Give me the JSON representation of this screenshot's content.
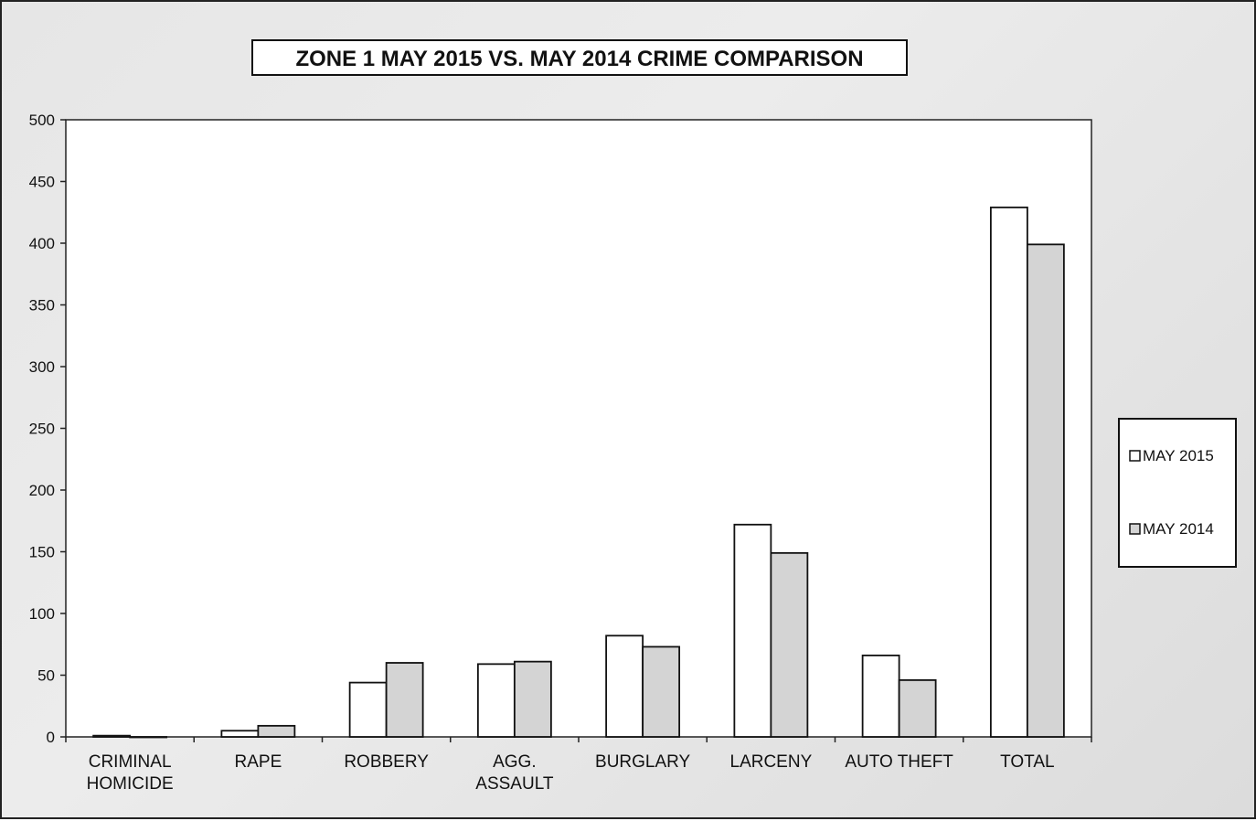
{
  "chart_data": {
    "type": "bar",
    "title": "ZONE 1  MAY 2015 VS. MAY 2014 CRIME COMPARISON",
    "xlabel": "",
    "ylabel": "",
    "ylim": [
      0,
      500
    ],
    "yticks": [
      0,
      50,
      100,
      150,
      200,
      250,
      300,
      350,
      400,
      450,
      500
    ],
    "grid": false,
    "legend_position": "right",
    "categories": [
      "CRIMINAL\nHOMICIDE",
      "RAPE",
      "ROBBERY",
      "AGG.\nASSAULT",
      "BURGLARY",
      "LARCENY",
      "AUTO THEFT",
      "TOTAL"
    ],
    "series": [
      {
        "name": "MAY 2015",
        "color": "#ffffff",
        "values": [
          1,
          5,
          44,
          59,
          82,
          172,
          66,
          429
        ]
      },
      {
        "name": "MAY 2014",
        "color": "#d4d4d4",
        "values": [
          0,
          9,
          60,
          61,
          73,
          149,
          46,
          399
        ]
      }
    ]
  }
}
